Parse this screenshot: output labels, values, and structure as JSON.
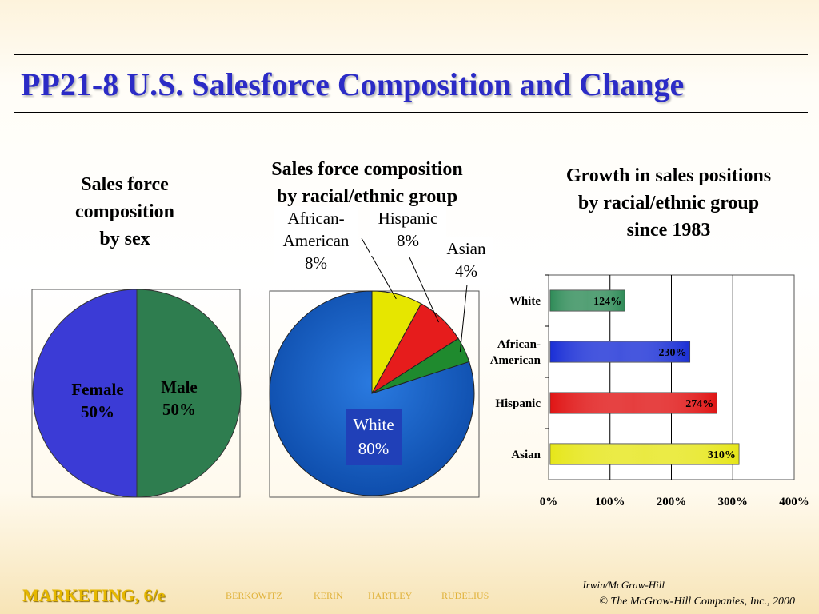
{
  "slide": {
    "title": "PP21-8  U.S. Salesforce Composition and Change",
    "footer": {
      "book": "MARKETING, 6/e",
      "authors": [
        "BERKOWITZ",
        "KERIN",
        "HARTLEY",
        "RUDELIUS"
      ],
      "publisher": "Irwin/McGraw-Hill",
      "copyright": "© The McGraw-Hill Companies, Inc., 2000"
    }
  },
  "chart_data": [
    {
      "type": "pie",
      "title": "Sales force\ncomposition\nby sex",
      "slices": [
        {
          "label": "Female",
          "value": 50,
          "value_label": "50%",
          "color": "#3b3bd6"
        },
        {
          "label": "Male",
          "value": 50,
          "value_label": "50%",
          "color": "#2e7d4f"
        }
      ]
    },
    {
      "type": "pie",
      "title": "Sales force composition\nby racial/ethnic group",
      "slices": [
        {
          "label": "African-American",
          "label_lines": [
            "African-",
            "American"
          ],
          "value": 8,
          "value_label": "8%",
          "color": "#e6e600"
        },
        {
          "label": "Hispanic",
          "label_lines": [
            "Hispanic"
          ],
          "value": 8,
          "value_label": "8%",
          "color": "#e61c1c"
        },
        {
          "label": "Asian",
          "label_lines": [
            "Asian"
          ],
          "value": 4,
          "value_label": "4%",
          "color": "#1f8a2e"
        },
        {
          "label": "White",
          "label_lines": [
            "White"
          ],
          "value": 80,
          "value_label": "80%",
          "color": "#1560c8"
        }
      ]
    },
    {
      "type": "bar",
      "orientation": "horizontal",
      "title": "Growth in sales positions\nby racial/ethnic group\nsince 1983",
      "categories": [
        "White",
        "African-\nAmerican",
        "Hispanic",
        "Asian"
      ],
      "values": [
        124,
        230,
        274,
        310
      ],
      "value_labels": [
        "124%",
        "230%",
        "274%",
        "310%"
      ],
      "colors": [
        "#2e8b57",
        "#1a2fd6",
        "#e01515",
        "#e6e61a"
      ],
      "xlim": [
        0,
        400
      ],
      "xticks": [
        "0%",
        "100%",
        "200%",
        "300%",
        "400%"
      ],
      "grid": true
    }
  ]
}
